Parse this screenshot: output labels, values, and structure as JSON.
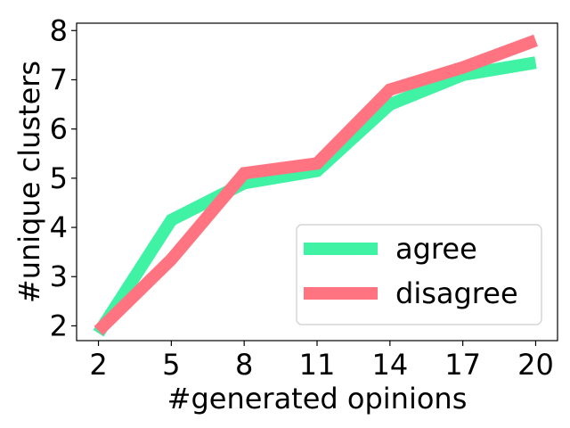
{
  "chart_data": {
    "type": "line",
    "title": "",
    "xlabel": "#generated opinions",
    "ylabel": "#unique clusters",
    "x": [
      2,
      5,
      8,
      11,
      14,
      17,
      20
    ],
    "xticks": [
      "2",
      "5",
      "8",
      "11",
      "14",
      "17",
      "20"
    ],
    "yticks": [
      "2",
      "3",
      "4",
      "5",
      "6",
      "7",
      "8"
    ],
    "xlim": [
      1.1,
      20.9
    ],
    "ylim": [
      1.7,
      8.15
    ],
    "grid": false,
    "legend_position": "lower-right",
    "series": [
      {
        "name": "agree",
        "color": "#40F2A4",
        "values": [
          1.85,
          4.15,
          4.9,
          5.15,
          6.5,
          7.1,
          7.35
        ]
      },
      {
        "name": "disagree",
        "color": "#FF7480",
        "values": [
          1.9,
          3.35,
          5.1,
          5.3,
          6.8,
          7.25,
          7.8
        ]
      }
    ]
  }
}
